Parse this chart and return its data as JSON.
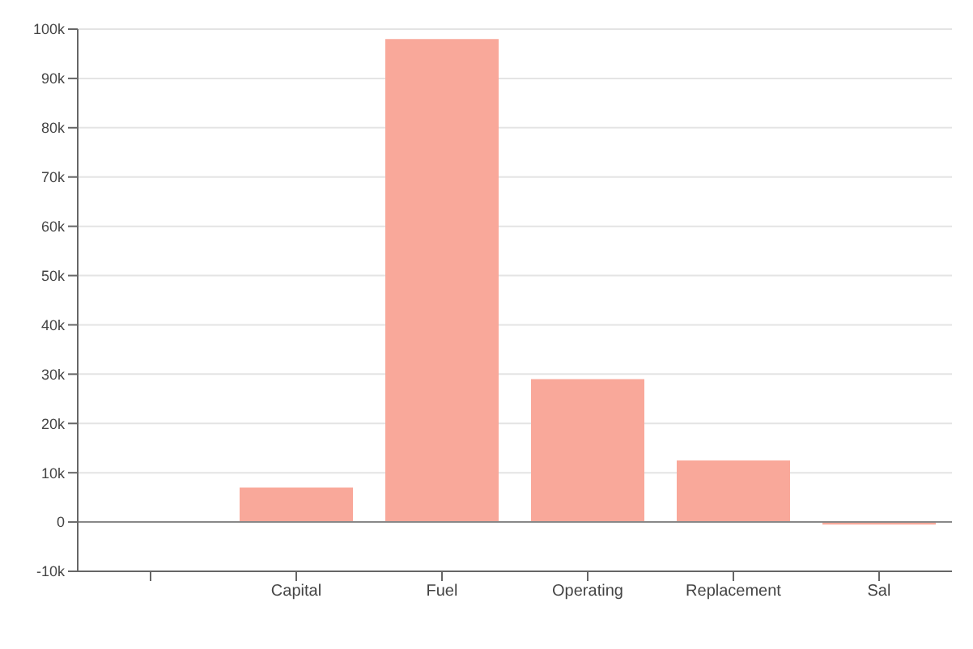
{
  "chart_data": {
    "type": "bar",
    "categories": [
      null,
      "Capital",
      "Fuel",
      "Operating",
      "Replacement",
      "Sal"
    ],
    "values": [
      null,
      7000,
      98000,
      29000,
      12500,
      -500
    ],
    "color": "#f9a89a",
    "ylim": [
      -10000,
      100000
    ],
    "yticks": [
      {
        "value": -10000,
        "label": "-10k"
      },
      0,
      {
        "value": 10000,
        "label": "10k"
      },
      {
        "value": 20000,
        "label": "20k"
      },
      {
        "value": 30000,
        "label": "30k"
      },
      {
        "value": 40000,
        "label": "40k"
      },
      {
        "value": 50000,
        "label": "50k"
      },
      {
        "value": 60000,
        "label": "60k"
      },
      {
        "value": 70000,
        "label": "70k"
      },
      {
        "value": 80000,
        "label": "80k"
      },
      {
        "value": 90000,
        "label": "90k"
      },
      {
        "value": 100000,
        "label": "100k"
      }
    ],
    "grid": "y",
    "legend": false
  }
}
